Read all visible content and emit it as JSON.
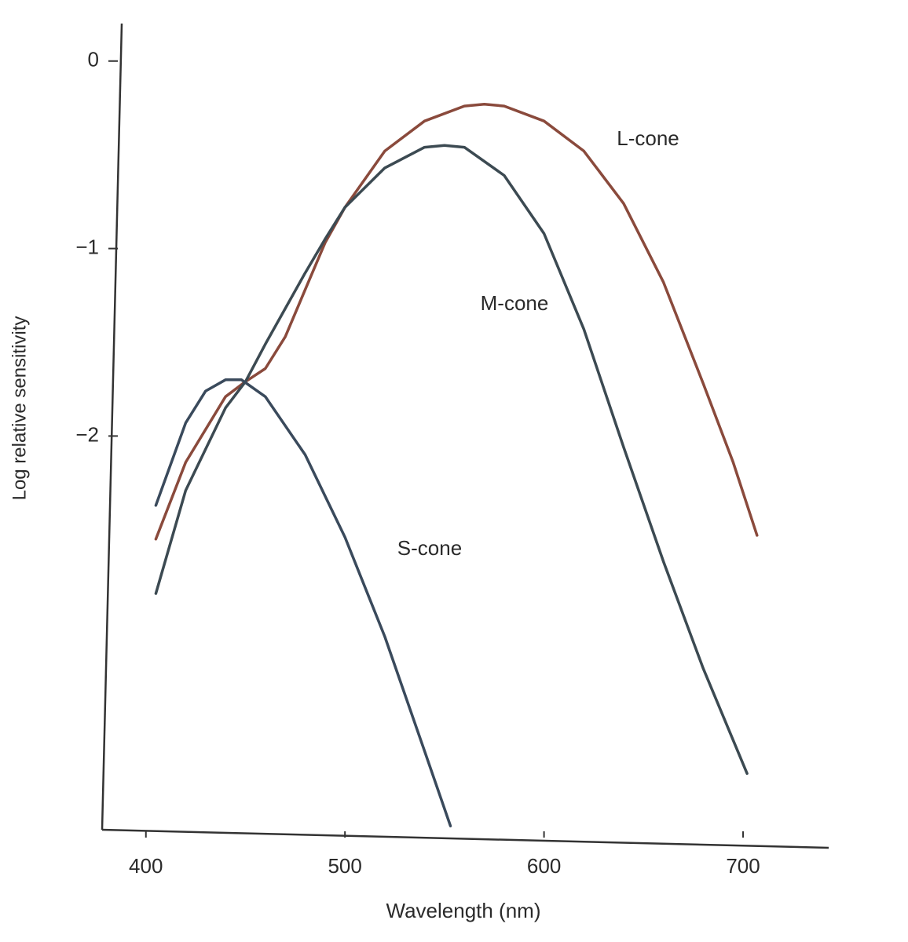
{
  "chart_data": {
    "type": "line",
    "x_label": "Wavelength (nm)",
    "y_label": "Log relative sensitivity",
    "xlim": [
      378,
      743
    ],
    "ylim": [
      -4.1,
      0.2
    ],
    "xticks": [
      400,
      500,
      600,
      700
    ],
    "yticks": [
      0,
      {
        "value": -1,
        "label": "−1"
      },
      {
        "value": -2,
        "label": "−2"
      }
    ],
    "series": [
      {
        "name": "L-cone",
        "color": "#8a4a3c",
        "x": [
          405,
          420,
          440,
          450,
          460,
          470,
          480,
          490,
          500,
          520,
          540,
          560,
          570,
          580,
          600,
          620,
          640,
          660,
          680,
          695,
          707
        ],
        "values": [
          -2.55,
          -2.14,
          -1.79,
          -1.71,
          -1.64,
          -1.47,
          -1.22,
          -0.97,
          -0.78,
          -0.48,
          -0.32,
          -0.24,
          -0.23,
          -0.24,
          -0.32,
          -0.48,
          -0.76,
          -1.18,
          -1.72,
          -2.14,
          -2.53
        ]
      },
      {
        "name": "M-cone",
        "color": "#3c4a52",
        "x": [
          405,
          420,
          440,
          450,
          460,
          480,
          490,
          500,
          520,
          540,
          550,
          560,
          580,
          600,
          620,
          640,
          660,
          680,
          702
        ],
        "values": [
          -2.84,
          -2.29,
          -1.85,
          -1.71,
          -1.51,
          -1.13,
          -0.95,
          -0.78,
          -0.57,
          -0.46,
          -0.45,
          -0.46,
          -0.61,
          -0.92,
          -1.43,
          -2.06,
          -2.67,
          -3.24,
          -3.8
        ]
      },
      {
        "name": "S-cone",
        "color": "#3a4a5c",
        "x": [
          405,
          420,
          430,
          440,
          448,
          460,
          480,
          500,
          520,
          540,
          553
        ],
        "values": [
          -2.37,
          -1.93,
          -1.76,
          -1.7,
          -1.7,
          -1.79,
          -2.1,
          -2.54,
          -3.07,
          -3.68,
          -4.08
        ]
      }
    ]
  }
}
